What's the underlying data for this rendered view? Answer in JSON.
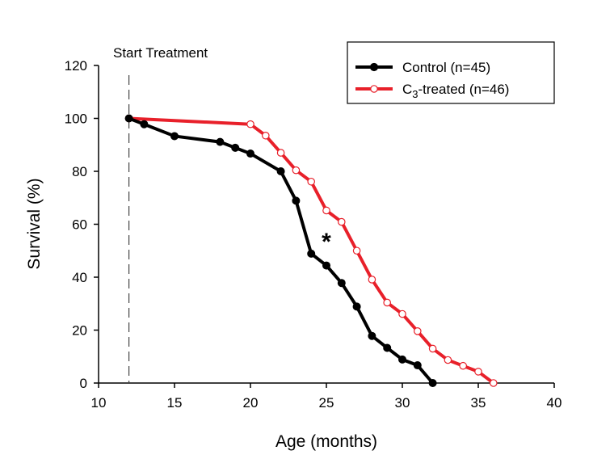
{
  "chart_data": {
    "type": "line",
    "xlabel": "Age (months)",
    "ylabel": "Survival (%)",
    "xlim": [
      10,
      40
    ],
    "ylim": [
      0,
      120
    ],
    "xticks": [
      10,
      15,
      20,
      25,
      30,
      35,
      40
    ],
    "yticks": [
      0,
      20,
      40,
      60,
      80,
      100,
      120
    ],
    "grid": false,
    "legend_position": "top-right",
    "annotations": {
      "start_treatment": {
        "label": "Start Treatment",
        "x": 12
      },
      "significance": {
        "label": "*",
        "x": 25,
        "y": 54
      }
    },
    "series": [
      {
        "name": "Control (n=45)",
        "color": "#000000",
        "marker": "filled-circle",
        "points": [
          [
            12,
            100
          ],
          [
            13,
            97.8
          ],
          [
            15,
            93.3
          ],
          [
            18,
            91.1
          ],
          [
            19,
            88.9
          ],
          [
            20,
            86.7
          ],
          [
            22,
            80
          ],
          [
            23,
            68.9
          ],
          [
            24,
            48.9
          ],
          [
            25,
            44.4
          ],
          [
            26,
            37.8
          ],
          [
            27,
            28.9
          ],
          [
            28,
            17.8
          ],
          [
            29,
            13.3
          ],
          [
            30,
            8.9
          ],
          [
            31,
            6.7
          ],
          [
            32,
            0
          ]
        ]
      },
      {
        "name_prefix": "C",
        "name_sub": "3",
        "name_suffix": "-treated (n=46)",
        "color": "#e8202a",
        "marker": "open-circle",
        "points": [
          [
            12,
            100
          ],
          [
            20,
            97.8
          ],
          [
            21,
            93.5
          ],
          [
            22,
            87
          ],
          [
            23,
            80.4
          ],
          [
            24,
            76.1
          ],
          [
            25,
            65.2
          ],
          [
            26,
            60.9
          ],
          [
            27,
            50
          ],
          [
            28,
            39.1
          ],
          [
            29,
            30.4
          ],
          [
            30,
            26.1
          ],
          [
            31,
            19.6
          ],
          [
            32,
            13
          ],
          [
            33,
            8.7
          ],
          [
            34,
            6.5
          ],
          [
            35,
            4.3
          ],
          [
            36,
            0
          ]
        ]
      }
    ]
  }
}
